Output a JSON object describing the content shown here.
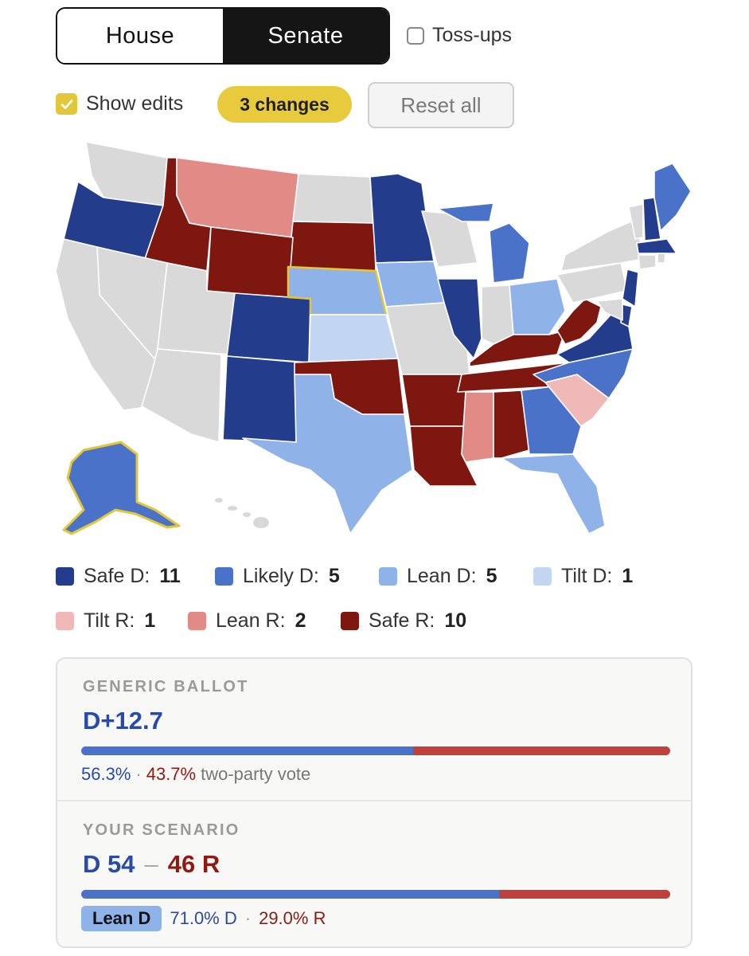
{
  "chamber_toggle": {
    "house_label": "House",
    "senate_label": "Senate",
    "selected": "Senate"
  },
  "tossups": {
    "label": "Toss-ups",
    "checked": false
  },
  "show_edits": {
    "label": "Show edits",
    "checked": true
  },
  "changes_badge": "3 changes",
  "reset_label": "Reset all",
  "colors": {
    "safe_d": "#233d8c",
    "likely_d": "#4a72c8",
    "lean_d": "#8fb2e8",
    "tilt_d": "#c3d6f1",
    "tilt_r": "#efb9b8",
    "lean_r": "#e28a86",
    "safe_r": "#7f1711",
    "no_race": "#d9d9d9",
    "edit_highlight": "#e3c73a"
  },
  "legend": [
    {
      "label": "Safe D:",
      "count": "11",
      "color": "#233d8c"
    },
    {
      "label": "Likely D:",
      "count": "5",
      "color": "#4a72c8"
    },
    {
      "label": "Lean D:",
      "count": "5",
      "color": "#8fb2e8"
    },
    {
      "label": "Tilt D:",
      "count": "1",
      "color": "#c3d6f1"
    },
    {
      "label": "Tilt R:",
      "count": "1",
      "color": "#efb9b8"
    },
    {
      "label": "Lean R:",
      "count": "2",
      "color": "#e28a86"
    },
    {
      "label": "Safe R:",
      "count": "10",
      "color": "#7f1711"
    }
  ],
  "generic_ballot": {
    "heading": "GENERIC BALLOT",
    "margin": "D+12.7",
    "d_share": 56.3,
    "d_pct": "56.3%",
    "r_pct": "43.7%",
    "suffix": "two-party vote"
  },
  "scenario": {
    "heading": "YOUR SCENARIO",
    "d_text": "D 54",
    "dash": "–",
    "r_text": "46 R",
    "d_share": 71.0,
    "rating": "Lean D",
    "d_pct": "71.0% D",
    "r_pct": "29.0% R"
  }
}
